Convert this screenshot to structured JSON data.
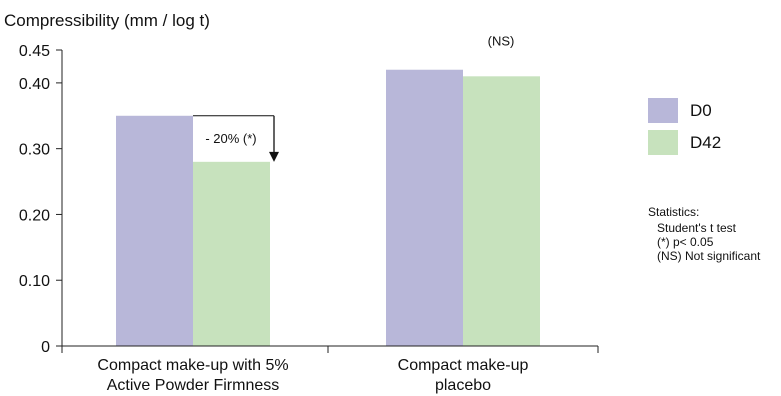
{
  "chart_data": {
    "type": "bar",
    "ylabel": "Compressibility (mm / log t)",
    "categories": [
      [
        "Compact make-up with 5%",
        "Active Powder Firmness"
      ],
      [
        "Compact make-up",
        "placebo"
      ]
    ],
    "series": [
      {
        "name": "D0",
        "color": "#b8b7d9",
        "values": [
          0.35,
          0.42
        ]
      },
      {
        "name": "D42",
        "color": "#c7e2bd",
        "values": [
          0.28,
          0.41
        ]
      }
    ],
    "ylim": [
      0,
      0.45
    ],
    "yticks": [
      {
        "value": 0,
        "label": "0"
      },
      {
        "value": 0.1,
        "label": "0.10"
      },
      {
        "value": 0.2,
        "label": "0.20"
      },
      {
        "value": 0.3,
        "label": "0.30"
      },
      {
        "value": 0.4,
        "label": "0.40"
      },
      {
        "value": 0.45,
        "label": "0.45"
      }
    ],
    "grid": false,
    "legend": {
      "placement": "right"
    },
    "annotations": [
      {
        "category_index": 0,
        "text": "- 20% (*)",
        "from": 0.35,
        "to": 0.28
      },
      {
        "category_index": 1,
        "text": "(NS)"
      }
    ],
    "statistics": {
      "title": "Statistics:",
      "lines": [
        "Student's t test",
        "(*) p< 0.05",
        "(NS) Not significant"
      ]
    }
  }
}
